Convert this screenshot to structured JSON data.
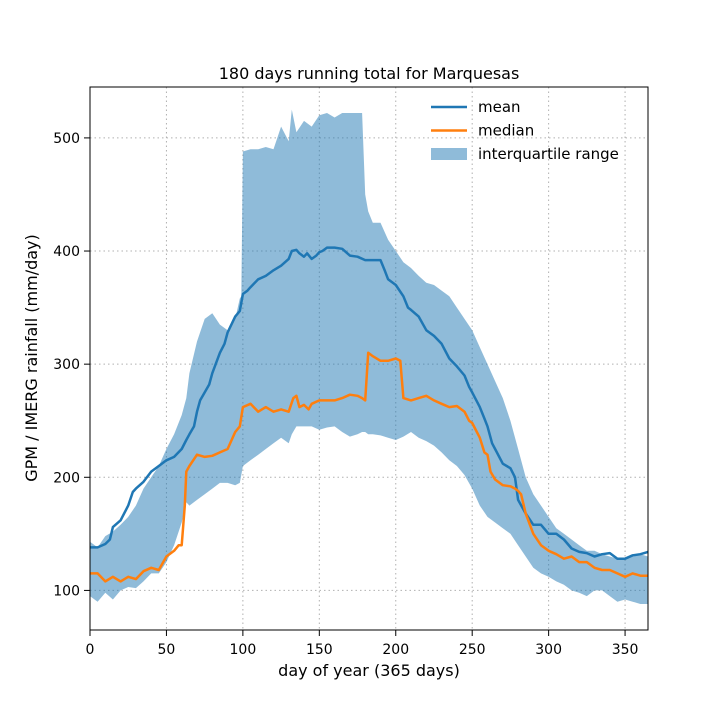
{
  "chart_data": {
    "type": "line",
    "title": "180 days running total for Marquesas",
    "xlabel": "day of year (365 days)",
    "ylabel": "GPM / IMERG rainfall (mm/day)",
    "xlim": [
      0,
      365
    ],
    "ylim": [
      65,
      545
    ],
    "xticks": [
      0,
      50,
      100,
      150,
      200,
      250,
      300,
      350
    ],
    "yticks": [
      100,
      200,
      300,
      400,
      500
    ],
    "grid": true,
    "grid_style": "dotted",
    "legend_position": "top-right",
    "legend": [
      {
        "label": "mean",
        "kind": "line",
        "color": "#1f77b4"
      },
      {
        "label": "median",
        "kind": "line",
        "color": "#ff7f0e"
      },
      {
        "label": "interquartile range",
        "kind": "patch",
        "color": "#1f77b4"
      }
    ],
    "series": [
      {
        "name": "mean",
        "color": "#1f77b4",
        "x": [
          0,
          5,
          10,
          13,
          15,
          20,
          25,
          28,
          30,
          35,
          40,
          45,
          50,
          55,
          60,
          63,
          65,
          68,
          70,
          72,
          75,
          78,
          80,
          85,
          88,
          90,
          95,
          98,
          100,
          103,
          105,
          110,
          115,
          120,
          125,
          130,
          132,
          135,
          137,
          140,
          142,
          145,
          148,
          150,
          152,
          155,
          158,
          160,
          165,
          170,
          175,
          180,
          185,
          190,
          193,
          195,
          200,
          205,
          208,
          210,
          215,
          220,
          225,
          230,
          235,
          240,
          245,
          248,
          250,
          255,
          258,
          260,
          263,
          265,
          270,
          275,
          278,
          280,
          285,
          290,
          295,
          300,
          305,
          310,
          315,
          320,
          325,
          330,
          335,
          340,
          345,
          350,
          355,
          360,
          365
        ],
        "y": [
          138,
          138,
          141,
          145,
          156,
          162,
          175,
          187,
          190,
          196,
          205,
          210,
          215,
          218,
          225,
          233,
          238,
          245,
          258,
          268,
          275,
          282,
          292,
          310,
          318,
          328,
          342,
          347,
          362,
          365,
          368,
          375,
          378,
          383,
          387,
          393,
          400,
          401,
          398,
          395,
          398,
          393,
          396,
          399,
          400,
          403,
          403,
          403,
          402,
          396,
          395,
          392,
          392,
          392,
          382,
          375,
          370,
          360,
          350,
          348,
          342,
          330,
          325,
          318,
          305,
          298,
          290,
          280,
          275,
          262,
          252,
          245,
          230,
          225,
          212,
          208,
          200,
          180,
          168,
          158,
          158,
          150,
          150,
          145,
          137,
          134,
          133,
          130,
          132,
          133,
          128,
          128,
          131,
          132,
          134
        ]
      },
      {
        "name": "median",
        "color": "#ff7f0e",
        "x": [
          0,
          5,
          10,
          15,
          20,
          25,
          30,
          35,
          40,
          45,
          50,
          55,
          58,
          60,
          62,
          63,
          65,
          70,
          75,
          80,
          85,
          90,
          95,
          98,
          100,
          105,
          110,
          115,
          120,
          125,
          130,
          133,
          135,
          137,
          140,
          143,
          145,
          150,
          155,
          160,
          165,
          170,
          175,
          178,
          180,
          182,
          185,
          190,
          195,
          200,
          203,
          205,
          210,
          215,
          220,
          225,
          230,
          235,
          240,
          245,
          248,
          250,
          255,
          258,
          260,
          262,
          265,
          270,
          275,
          278,
          280,
          282,
          285,
          290,
          295,
          300,
          305,
          310,
          315,
          320,
          325,
          330,
          335,
          340,
          345,
          350,
          355,
          360,
          365
        ],
        "y": [
          115,
          115,
          108,
          112,
          108,
          112,
          110,
          117,
          120,
          118,
          130,
          135,
          140,
          140,
          175,
          205,
          210,
          220,
          218,
          219,
          222,
          225,
          240,
          245,
          262,
          265,
          258,
          262,
          258,
          260,
          258,
          270,
          272,
          262,
          264,
          260,
          265,
          268,
          268,
          268,
          270,
          273,
          272,
          270,
          268,
          310,
          307,
          303,
          303,
          305,
          303,
          270,
          268,
          270,
          272,
          268,
          265,
          262,
          263,
          258,
          250,
          248,
          235,
          222,
          220,
          205,
          198,
          193,
          192,
          190,
          188,
          185,
          168,
          150,
          140,
          135,
          132,
          128,
          130,
          125,
          125,
          120,
          118,
          118,
          115,
          112,
          115,
          113,
          113
        ]
      }
    ],
    "band": {
      "name": "interquartile range",
      "color": "#1f77b4",
      "opacity": 0.5,
      "x": [
        0,
        5,
        10,
        15,
        20,
        25,
        30,
        35,
        40,
        45,
        50,
        55,
        60,
        63,
        65,
        70,
        75,
        80,
        85,
        90,
        95,
        98,
        99,
        100,
        105,
        110,
        115,
        120,
        125,
        130,
        132,
        135,
        140,
        145,
        150,
        155,
        160,
        165,
        170,
        175,
        178,
        180,
        182,
        185,
        190,
        195,
        200,
        205,
        210,
        215,
        220,
        225,
        230,
        235,
        240,
        245,
        250,
        255,
        260,
        265,
        270,
        275,
        280,
        285,
        290,
        295,
        300,
        305,
        310,
        315,
        320,
        325,
        330,
        335,
        340,
        345,
        350,
        355,
        360,
        365
      ],
      "low": [
        95,
        90,
        98,
        92,
        100,
        103,
        102,
        108,
        115,
        115,
        125,
        140,
        160,
        178,
        175,
        180,
        185,
        190,
        195,
        195,
        193,
        195,
        202,
        210,
        215,
        220,
        225,
        230,
        235,
        230,
        238,
        245,
        245,
        245,
        242,
        244,
        245,
        240,
        236,
        238,
        240,
        240,
        238,
        238,
        237,
        235,
        233,
        236,
        240,
        235,
        232,
        228,
        222,
        215,
        210,
        202,
        190,
        175,
        165,
        160,
        155,
        150,
        140,
        130,
        120,
        115,
        112,
        108,
        105,
        100,
        98,
        95,
        100,
        100,
        95,
        90,
        92,
        90,
        88,
        88
      ],
      "high": [
        143,
        138,
        148,
        152,
        158,
        165,
        175,
        190,
        200,
        210,
        225,
        238,
        255,
        270,
        292,
        320,
        340,
        345,
        335,
        330,
        340,
        358,
        360,
        488,
        490,
        490,
        492,
        490,
        510,
        497,
        525,
        505,
        515,
        510,
        520,
        522,
        518,
        522,
        522,
        522,
        522,
        450,
        435,
        425,
        425,
        410,
        400,
        390,
        385,
        378,
        372,
        370,
        365,
        360,
        350,
        340,
        330,
        315,
        300,
        285,
        270,
        250,
        225,
        200,
        185,
        175,
        165,
        155,
        150,
        145,
        140,
        135,
        135,
        132,
        130,
        128,
        128,
        130,
        132,
        130
      ]
    }
  }
}
